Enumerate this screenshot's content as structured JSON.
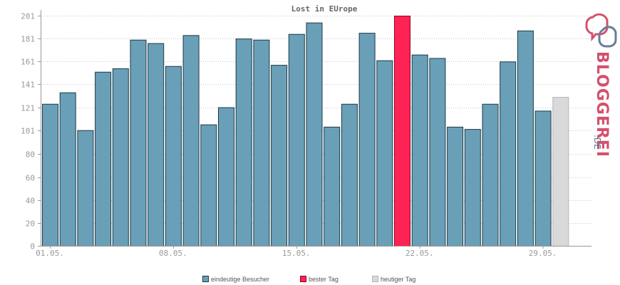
{
  "chart_data": {
    "type": "bar",
    "title": "Lost in EUrope",
    "xlabel": "",
    "ylabel": "",
    "ylim": [
      0,
      201
    ],
    "y_ticks": [
      0,
      20,
      40,
      60,
      80,
      101,
      121,
      141,
      161,
      181,
      201
    ],
    "y_tick_labels": [
      "0",
      "20",
      "40",
      "60",
      "80",
      "101",
      "121",
      "141",
      "161",
      "181",
      "201"
    ],
    "grid": true,
    "legend_position": "bottom",
    "x_tick_labels": [
      {
        "index": 1,
        "label": "01.05."
      },
      {
        "index": 8,
        "label": "08.05."
      },
      {
        "index": 15,
        "label": "15.05."
      },
      {
        "index": 22,
        "label": "22.05."
      },
      {
        "index": 29,
        "label": "29.05."
      }
    ],
    "categories": [
      "01.05.",
      "02.05.",
      "03.05.",
      "04.05.",
      "05.05.",
      "06.05.",
      "07.05.",
      "08.05.",
      "09.05.",
      "10.05.",
      "11.05.",
      "12.05.",
      "13.05.",
      "14.05.",
      "15.05.",
      "16.05.",
      "17.05.",
      "18.05.",
      "19.05.",
      "20.05.",
      "21.05.",
      "22.05.",
      "23.05.",
      "24.05.",
      "25.05.",
      "26.05.",
      "27.05.",
      "28.05.",
      "29.05.",
      "30.05."
    ],
    "values": [
      124,
      134,
      101,
      152,
      155,
      180,
      177,
      157,
      184,
      106,
      121,
      181,
      180,
      158,
      185,
      195,
      104,
      124,
      186,
      162,
      201,
      167,
      164,
      104,
      102,
      124,
      161,
      188,
      118,
      130
    ],
    "bar_types": [
      "normal",
      "normal",
      "normal",
      "normal",
      "normal",
      "normal",
      "normal",
      "normal",
      "normal",
      "normal",
      "normal",
      "normal",
      "normal",
      "normal",
      "normal",
      "normal",
      "normal",
      "normal",
      "normal",
      "normal",
      "best",
      "normal",
      "normal",
      "normal",
      "normal",
      "normal",
      "normal",
      "normal",
      "normal",
      "today"
    ],
    "legend": [
      {
        "label": "eindeutige Besucher",
        "key": "normal",
        "color": "#6a9fb8"
      },
      {
        "label": "bester Tag",
        "key": "best",
        "color": "#ff2255"
      },
      {
        "label": "heutiger Tag",
        "key": "today",
        "color": "#d9d9d9"
      }
    ],
    "colors": {
      "normal_fill": "#6a9fb8",
      "normal_stroke": "#1c3a47",
      "best_fill": "#ff2255",
      "best_stroke": "#8a0a26",
      "today_fill": "#d9d9d9",
      "today_stroke": "#b5b5b5"
    }
  },
  "logo": {
    "name": "BLOGGEREI",
    "suffix": ".DE",
    "color_main": "#d4506c",
    "color_secondary": "#6a7c98"
  }
}
